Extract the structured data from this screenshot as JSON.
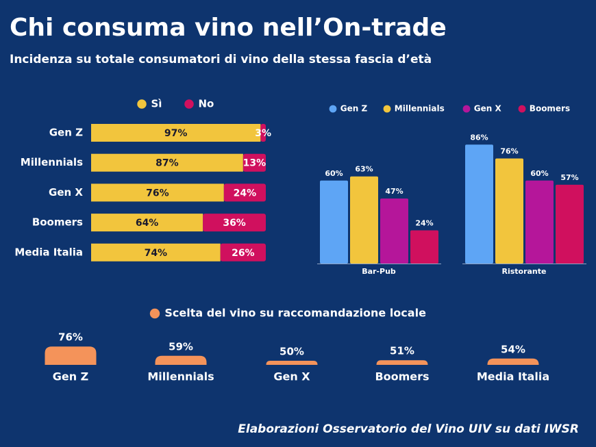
{
  "title": "Chi consuma vino nell’On-trade",
  "subtitle": "Incidenza su totale consumatori di vino della stessa fascia d’età",
  "source": "Elaborazioni Osservatorio del Vino UIV su dati IWSR",
  "chart_data": [
    {
      "type": "bar",
      "orientation": "horizontal",
      "stacked": true,
      "categories": [
        "Gen Z",
        "Millennials",
        "Gen X",
        "Boomers",
        "Media Italia"
      ],
      "series": [
        {
          "name": "Sì",
          "color": "#f2c53d",
          "values": [
            97,
            87,
            76,
            64,
            74
          ],
          "value_labels": [
            "97%",
            "87%",
            "76%",
            "64%",
            "74%"
          ]
        },
        {
          "name": "No",
          "color": "#d0105e",
          "values": [
            3,
            13,
            24,
            36,
            26
          ],
          "value_labels": [
            "3%",
            "13%",
            "24%",
            "36%",
            "26%"
          ]
        }
      ]
    },
    {
      "type": "bar",
      "orientation": "vertical",
      "stacked": false,
      "categories": [
        "Bar-Pub",
        "Ristorante"
      ],
      "series": [
        {
          "name": "Gen Z",
          "color": "#5ea5f5",
          "values": [
            60,
            86
          ],
          "value_labels": [
            "60%",
            "86%"
          ]
        },
        {
          "name": "Millennials",
          "color": "#f2c53d",
          "values": [
            63,
            76
          ],
          "value_labels": [
            "63%",
            "76%"
          ]
        },
        {
          "name": "Gen X",
          "color": "#b5169a",
          "values": [
            47,
            60
          ],
          "value_labels": [
            "47%",
            "60%"
          ]
        },
        {
          "name": "Boomers",
          "color": "#d0105e",
          "values": [
            24,
            57
          ],
          "value_labels": [
            "24%",
            "57%"
          ]
        }
      ]
    },
    {
      "type": "bar",
      "orientation": "vertical",
      "stacked": false,
      "categories": [
        "Gen Z",
        "Millennials",
        "Gen X",
        "Boomers",
        "Media Italia"
      ],
      "series": [
        {
          "name": "Scelta del vino su raccomandazione locale",
          "color": "#f4935a",
          "values": [
            76,
            59,
            50,
            51,
            54
          ],
          "value_labels": [
            "76%",
            "59%",
            "50%",
            "51%",
            "54%"
          ]
        }
      ]
    }
  ]
}
